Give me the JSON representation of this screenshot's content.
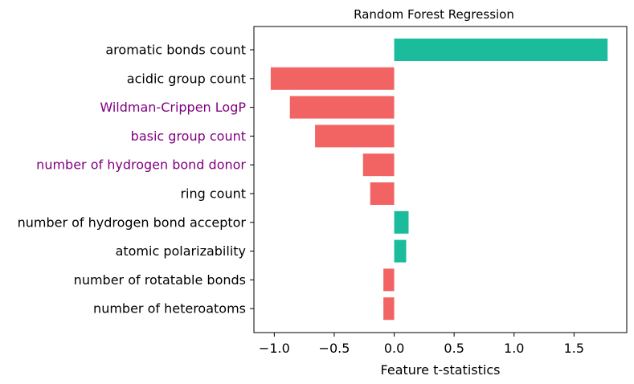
{
  "chart_data": {
    "type": "bar",
    "orientation": "horizontal",
    "title": "Random Forest Regression",
    "xlabel": "Feature t-statistics",
    "ylabel": "",
    "xlim": [
      -1.17,
      1.94
    ],
    "xticks": [
      -1.0,
      -0.5,
      0.0,
      0.5,
      1.0,
      1.5
    ],
    "xtick_labels": [
      "−1.0",
      "−0.5",
      "0.0",
      "0.5",
      "1.0",
      "1.5"
    ],
    "grid": false,
    "positive_color": "#1abc9c",
    "negative_color": "#f26363",
    "default_label_color": "#000000",
    "highlight_label_color": "#800080",
    "bars": [
      {
        "label": "aromatic bonds count",
        "value": 1.78,
        "highlight": false
      },
      {
        "label": "acidic group count",
        "value": -1.03,
        "highlight": false
      },
      {
        "label": "Wildman-Crippen LogP",
        "value": -0.87,
        "highlight": true
      },
      {
        "label": "basic group count",
        "value": -0.66,
        "highlight": true
      },
      {
        "label": "number of hydrogen bond donor",
        "value": -0.26,
        "highlight": true
      },
      {
        "label": "ring count",
        "value": -0.2,
        "highlight": false
      },
      {
        "label": "number of hydrogen bond acceptor",
        "value": 0.12,
        "highlight": false
      },
      {
        "label": "atomic polarizability",
        "value": 0.1,
        "highlight": false
      },
      {
        "label": "number of rotatable bonds",
        "value": -0.09,
        "highlight": false
      },
      {
        "label": "number of heteroatoms",
        "value": -0.09,
        "highlight": false
      }
    ]
  }
}
